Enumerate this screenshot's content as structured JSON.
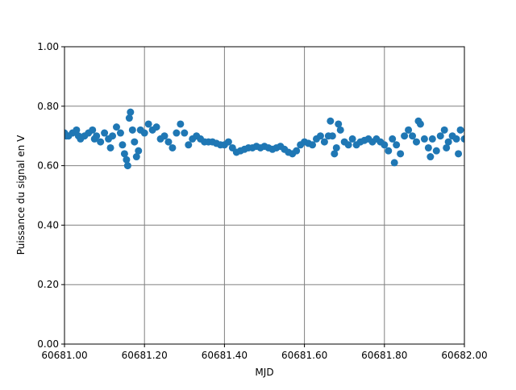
{
  "chart_data": {
    "type": "scatter",
    "x_label": "MJD",
    "y_label": "Puissance du signal en V",
    "color": "#1f77b4",
    "grid": true,
    "xlim": [
      60681.0,
      60682.0
    ],
    "xticks": [
      {
        "value": 60681.0,
        "label": "60681.00"
      },
      {
        "value": 60681.2,
        "label": "60681.20"
      },
      {
        "value": 60681.4,
        "label": "60681.40"
      },
      {
        "value": 60681.6,
        "label": "60681.60"
      },
      {
        "value": 60681.8,
        "label": "60681.80"
      },
      {
        "value": 60682.0,
        "label": "60682.00"
      }
    ],
    "ylim": [
      0,
      1
    ],
    "yticks": [
      {
        "value": 0,
        "label": "0.00"
      },
      {
        "value": 0.2,
        "label": "0.20"
      },
      {
        "value": 0.4,
        "label": "0.40"
      },
      {
        "value": 0.6,
        "label": "0.60"
      },
      {
        "value": 0.8,
        "label": "0.80"
      },
      {
        "value": 1,
        "label": "1.00"
      }
    ],
    "x": [
      60681.0,
      60681.005,
      60681.01,
      60681.02,
      60681.03,
      60681.035,
      60681.04,
      60681.05,
      60681.06,
      60681.07,
      60681.075,
      60681.08,
      60681.09,
      60681.1,
      60681.11,
      60681.115,
      60681.12,
      60681.13,
      60681.14,
      60681.145,
      60681.15,
      60681.155,
      60681.158,
      60681.162,
      60681.165,
      60681.17,
      60681.175,
      60681.18,
      60681.185,
      60681.19,
      60681.2,
      60681.21,
      60681.22,
      60681.23,
      60681.24,
      60681.25,
      60681.26,
      60681.27,
      60681.28,
      60681.29,
      60681.3,
      60681.31,
      60681.32,
      60681.33,
      60681.34,
      60681.35,
      60681.36,
      60681.37,
      60681.38,
      60681.39,
      60681.4,
      60681.41,
      60681.42,
      60681.43,
      60681.44,
      60681.45,
      60681.46,
      60681.47,
      60681.48,
      60681.49,
      60681.5,
      60681.51,
      60681.52,
      60681.53,
      60681.54,
      60681.55,
      60681.56,
      60681.57,
      60681.58,
      60681.59,
      60681.6,
      60681.61,
      60681.62,
      60681.63,
      60681.64,
      60681.65,
      60681.66,
      60681.665,
      60681.67,
      60681.675,
      60681.68,
      60681.685,
      60681.69,
      60681.7,
      60681.71,
      60681.72,
      60681.73,
      60681.74,
      60681.75,
      60681.76,
      60681.77,
      60681.78,
      60681.79,
      60681.8,
      60681.81,
      60681.82,
      60681.825,
      60681.83,
      60681.84,
      60681.85,
      60681.86,
      60681.87,
      60681.88,
      60681.885,
      60681.89,
      60681.9,
      60681.91,
      60681.915,
      60681.92,
      60681.93,
      60681.94,
      60681.95,
      60681.955,
      60681.96,
      60681.97,
      60681.98,
      60681.985,
      60681.99,
      60682.0
    ],
    "values": [
      0.71,
      0.7,
      0.7,
      0.71,
      0.72,
      0.7,
      0.69,
      0.7,
      0.71,
      0.72,
      0.69,
      0.7,
      0.68,
      0.71,
      0.69,
      0.66,
      0.7,
      0.73,
      0.71,
      0.67,
      0.64,
      0.62,
      0.6,
      0.76,
      0.78,
      0.72,
      0.68,
      0.63,
      0.65,
      0.72,
      0.71,
      0.74,
      0.72,
      0.73,
      0.69,
      0.7,
      0.68,
      0.66,
      0.71,
      0.74,
      0.71,
      0.67,
      0.69,
      0.7,
      0.69,
      0.68,
      0.68,
      0.68,
      0.675,
      0.67,
      0.67,
      0.68,
      0.66,
      0.645,
      0.65,
      0.655,
      0.66,
      0.66,
      0.665,
      0.66,
      0.665,
      0.66,
      0.655,
      0.66,
      0.665,
      0.655,
      0.645,
      0.64,
      0.65,
      0.67,
      0.68,
      0.675,
      0.67,
      0.69,
      0.7,
      0.68,
      0.7,
      0.75,
      0.7,
      0.64,
      0.66,
      0.74,
      0.72,
      0.68,
      0.67,
      0.69,
      0.67,
      0.68,
      0.685,
      0.69,
      0.68,
      0.69,
      0.68,
      0.67,
      0.65,
      0.69,
      0.61,
      0.67,
      0.64,
      0.7,
      0.72,
      0.7,
      0.68,
      0.75,
      0.74,
      0.69,
      0.66,
      0.63,
      0.69,
      0.65,
      0.7,
      0.72,
      0.66,
      0.68,
      0.7,
      0.69,
      0.64,
      0.72,
      0.69
    ]
  }
}
